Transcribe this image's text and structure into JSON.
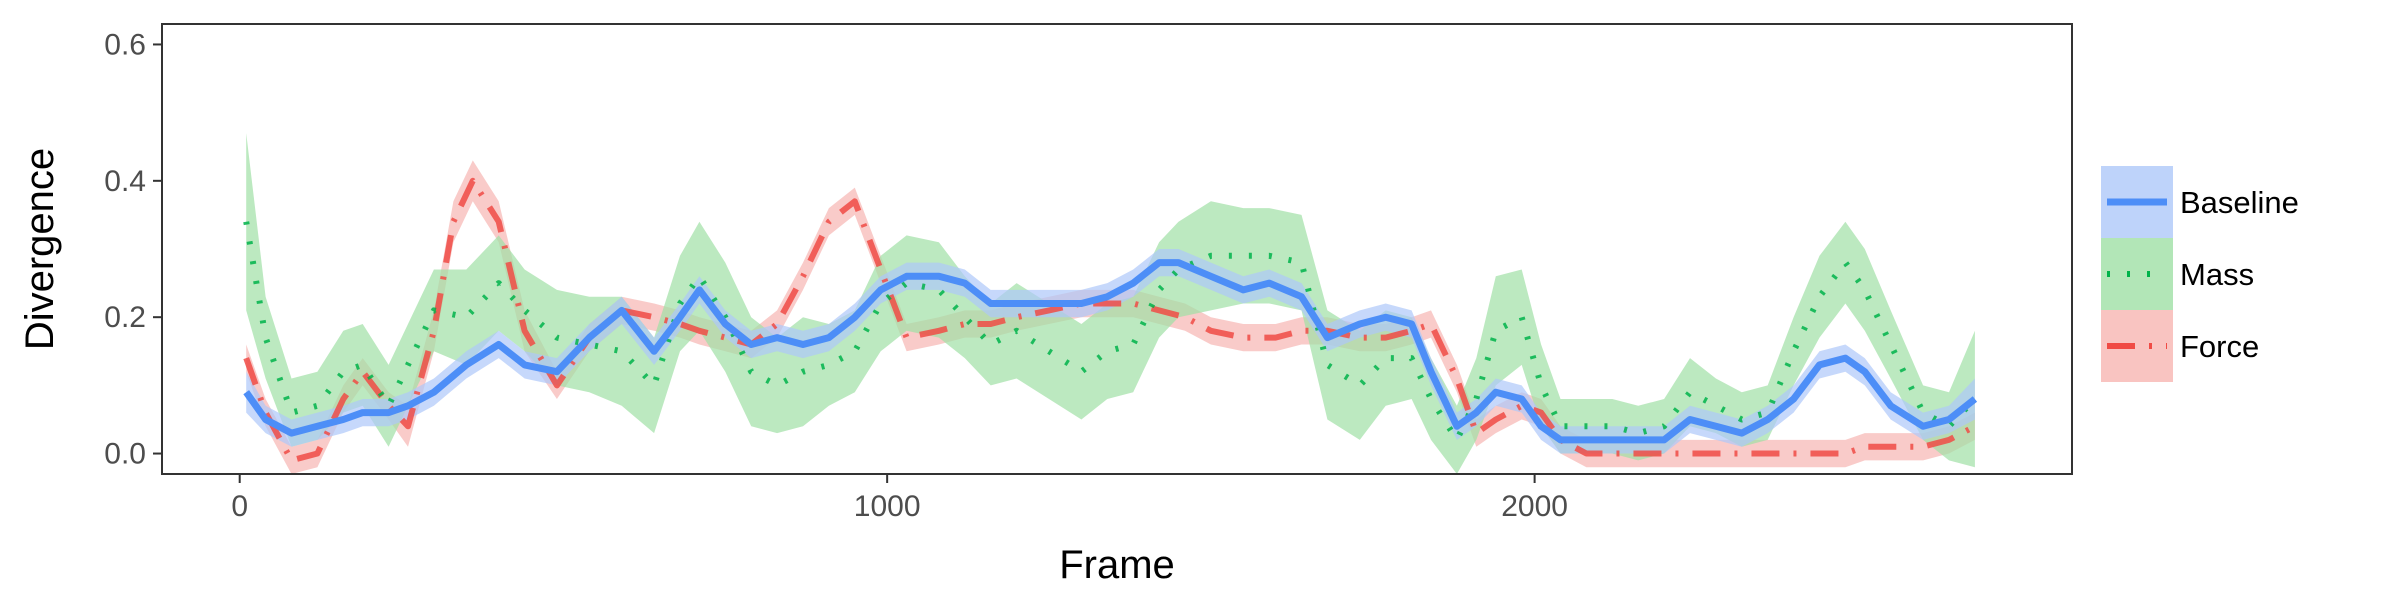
{
  "chart_data": {
    "type": "line",
    "xlabel": "Frame",
    "ylabel": "Divergence",
    "xlim": [
      -120,
      2830
    ],
    "ylim": [
      -0.03,
      0.63
    ],
    "x_ticks": [
      0,
      1000,
      2000
    ],
    "x_tick_labels": [
      "0",
      "1000",
      "2000"
    ],
    "y_ticks": [
      0.0,
      0.2,
      0.4,
      0.6
    ],
    "y_tick_labels": [
      "0.0",
      "0.2",
      "0.4",
      "0.6"
    ],
    "grid": false,
    "legend_position": "right",
    "series": [
      {
        "name": "Baseline",
        "color": "#4d8ef7",
        "band_color": "#aec8f9",
        "line_style": "solid",
        "x": [
          10,
          40,
          80,
          120,
          160,
          190,
          230,
          260,
          300,
          350,
          400,
          440,
          490,
          540,
          590,
          640,
          680,
          710,
          750,
          790,
          830,
          870,
          910,
          950,
          990,
          1030,
          1080,
          1120,
          1160,
          1200,
          1250,
          1300,
          1340,
          1380,
          1420,
          1450,
          1500,
          1550,
          1590,
          1640,
          1680,
          1730,
          1770,
          1810,
          1840,
          1880,
          1910,
          1940,
          1980,
          2010,
          2040,
          2080,
          2120,
          2160,
          2200,
          2240,
          2280,
          2320,
          2360,
          2400,
          2440,
          2480,
          2510,
          2550,
          2600,
          2640,
          2680
        ],
        "y": [
          0.09,
          0.05,
          0.03,
          0.04,
          0.05,
          0.06,
          0.06,
          0.07,
          0.09,
          0.13,
          0.16,
          0.13,
          0.12,
          0.17,
          0.21,
          0.15,
          0.2,
          0.24,
          0.19,
          0.16,
          0.17,
          0.16,
          0.17,
          0.2,
          0.24,
          0.26,
          0.26,
          0.25,
          0.22,
          0.22,
          0.22,
          0.22,
          0.23,
          0.25,
          0.28,
          0.28,
          0.26,
          0.24,
          0.25,
          0.23,
          0.17,
          0.19,
          0.2,
          0.19,
          0.12,
          0.04,
          0.06,
          0.09,
          0.08,
          0.04,
          0.02,
          0.02,
          0.02,
          0.02,
          0.02,
          0.05,
          0.04,
          0.03,
          0.05,
          0.08,
          0.13,
          0.14,
          0.12,
          0.07,
          0.04,
          0.05,
          0.08
        ],
        "ci": [
          0.03,
          0.02,
          0.02,
          0.02,
          0.02,
          0.02,
          0.02,
          0.02,
          0.02,
          0.02,
          0.02,
          0.02,
          0.02,
          0.02,
          0.02,
          0.02,
          0.02,
          0.02,
          0.02,
          0.02,
          0.02,
          0.02,
          0.02,
          0.02,
          0.02,
          0.02,
          0.02,
          0.02,
          0.02,
          0.02,
          0.02,
          0.02,
          0.02,
          0.02,
          0.02,
          0.02,
          0.02,
          0.02,
          0.02,
          0.02,
          0.02,
          0.02,
          0.02,
          0.02,
          0.02,
          0.02,
          0.02,
          0.02,
          0.02,
          0.02,
          0.02,
          0.02,
          0.02,
          0.02,
          0.02,
          0.02,
          0.02,
          0.02,
          0.02,
          0.02,
          0.02,
          0.02,
          0.02,
          0.02,
          0.02,
          0.02,
          0.03
        ]
      },
      {
        "name": "Mass",
        "color": "#00b34a",
        "band_color": "#9fe0a5",
        "line_style": "dotted",
        "x": [
          10,
          40,
          80,
          120,
          160,
          190,
          230,
          260,
          300,
          350,
          400,
          440,
          490,
          540,
          590,
          640,
          680,
          710,
          750,
          790,
          830,
          870,
          910,
          950,
          990,
          1030,
          1080,
          1120,
          1160,
          1200,
          1250,
          1300,
          1340,
          1380,
          1420,
          1450,
          1500,
          1550,
          1590,
          1640,
          1680,
          1730,
          1770,
          1810,
          1840,
          1880,
          1910,
          1940,
          1980,
          2010,
          2040,
          2080,
          2120,
          2160,
          2200,
          2240,
          2280,
          2320,
          2360,
          2400,
          2440,
          2480,
          2510,
          2550,
          2600,
          2640,
          2680
        ],
        "y": [
          0.34,
          0.17,
          0.06,
          0.07,
          0.12,
          0.13,
          0.07,
          0.13,
          0.21,
          0.2,
          0.25,
          0.21,
          0.17,
          0.16,
          0.15,
          0.1,
          0.22,
          0.26,
          0.2,
          0.12,
          0.1,
          0.12,
          0.13,
          0.15,
          0.22,
          0.25,
          0.24,
          0.2,
          0.16,
          0.18,
          0.15,
          0.12,
          0.15,
          0.16,
          0.24,
          0.27,
          0.29,
          0.29,
          0.29,
          0.28,
          0.13,
          0.1,
          0.14,
          0.14,
          0.08,
          0.02,
          0.08,
          0.18,
          0.2,
          0.1,
          0.04,
          0.04,
          0.04,
          0.03,
          0.04,
          0.09,
          0.07,
          0.05,
          0.06,
          0.15,
          0.23,
          0.28,
          0.24,
          0.16,
          0.06,
          0.04,
          0.08
        ],
        "ci": [
          0.13,
          0.06,
          0.05,
          0.05,
          0.06,
          0.06,
          0.06,
          0.06,
          0.06,
          0.07,
          0.07,
          0.06,
          0.07,
          0.07,
          0.08,
          0.07,
          0.07,
          0.08,
          0.08,
          0.08,
          0.07,
          0.08,
          0.06,
          0.06,
          0.07,
          0.07,
          0.07,
          0.06,
          0.06,
          0.07,
          0.07,
          0.07,
          0.07,
          0.07,
          0.07,
          0.07,
          0.08,
          0.07,
          0.07,
          0.07,
          0.08,
          0.08,
          0.07,
          0.06,
          0.06,
          0.05,
          0.06,
          0.08,
          0.07,
          0.06,
          0.04,
          0.04,
          0.04,
          0.04,
          0.04,
          0.05,
          0.04,
          0.04,
          0.04,
          0.05,
          0.06,
          0.06,
          0.06,
          0.05,
          0.04,
          0.05,
          0.1
        ]
      },
      {
        "name": "Force",
        "color": "#f04b45",
        "band_color": "#f7b5b2",
        "line_style": "dashdot",
        "x": [
          10,
          40,
          80,
          120,
          160,
          190,
          230,
          260,
          300,
          330,
          360,
          400,
          440,
          490,
          540,
          590,
          640,
          680,
          710,
          750,
          790,
          830,
          870,
          910,
          950,
          990,
          1030,
          1080,
          1120,
          1160,
          1200,
          1250,
          1300,
          1340,
          1380,
          1420,
          1460,
          1500,
          1550,
          1600,
          1640,
          1680,
          1730,
          1770,
          1810,
          1840,
          1880,
          1910,
          1940,
          1980,
          2010,
          2040,
          2080,
          2120,
          2160,
          2200,
          2240,
          2280,
          2320,
          2360,
          2400,
          2440,
          2480,
          2510,
          2550,
          2600,
          2640,
          2680
        ],
        "y": [
          0.14,
          0.06,
          -0.01,
          0.0,
          0.08,
          0.12,
          0.07,
          0.04,
          0.18,
          0.34,
          0.4,
          0.34,
          0.18,
          0.1,
          0.17,
          0.21,
          0.2,
          0.19,
          0.18,
          0.17,
          0.16,
          0.19,
          0.26,
          0.34,
          0.37,
          0.27,
          0.17,
          0.18,
          0.19,
          0.19,
          0.2,
          0.21,
          0.22,
          0.22,
          0.22,
          0.21,
          0.2,
          0.18,
          0.17,
          0.17,
          0.18,
          0.18,
          0.17,
          0.17,
          0.18,
          0.19,
          0.11,
          0.03,
          0.05,
          0.07,
          0.06,
          0.02,
          0.0,
          0.0,
          0.0,
          0.0,
          0.0,
          0.0,
          0.0,
          0.0,
          0.0,
          0.0,
          0.0,
          0.01,
          0.01,
          0.01,
          0.02,
          0.04
        ],
        "ci": [
          0.02,
          0.02,
          0.02,
          0.02,
          0.02,
          0.02,
          0.02,
          0.03,
          0.03,
          0.03,
          0.03,
          0.03,
          0.03,
          0.02,
          0.02,
          0.02,
          0.02,
          0.02,
          0.02,
          0.02,
          0.02,
          0.02,
          0.02,
          0.02,
          0.02,
          0.02,
          0.02,
          0.02,
          0.02,
          0.02,
          0.02,
          0.02,
          0.02,
          0.02,
          0.02,
          0.02,
          0.02,
          0.02,
          0.02,
          0.02,
          0.02,
          0.02,
          0.02,
          0.02,
          0.02,
          0.02,
          0.02,
          0.02,
          0.02,
          0.02,
          0.02,
          0.02,
          0.02,
          0.02,
          0.02,
          0.02,
          0.02,
          0.02,
          0.02,
          0.02,
          0.02,
          0.02,
          0.02,
          0.02,
          0.02,
          0.02,
          0.02,
          0.02
        ]
      }
    ]
  }
}
